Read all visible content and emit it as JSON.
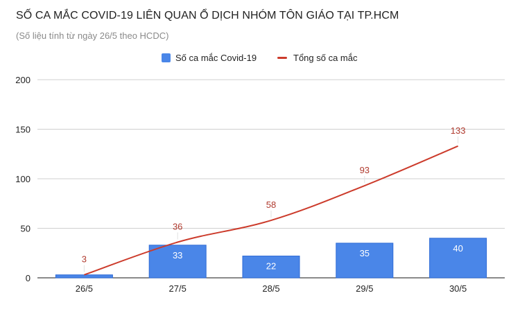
{
  "title": "SỐ CA MẮC COVID-19 LIÊN QUAN Ổ DỊCH NHÓM TÔN GIÁO TẠI TP.HCM",
  "subtitle": "(Số liệu tính từ ngày 26/5 theo HCDC)",
  "colors": {
    "bar": "#4a86e8",
    "bar_border": "#2f6bd6",
    "line": "#cc3b2b",
    "line_label": "#b03a2e",
    "grid": "#cfcfcf",
    "axis_text": "#222222"
  },
  "chart_data": {
    "type": "bar",
    "categories": [
      "26/5",
      "27/5",
      "28/5",
      "29/5",
      "30/5"
    ],
    "series": [
      {
        "name": "Số ca mắc Covid-19",
        "type": "bar",
        "values": [
          3,
          33,
          22,
          35,
          40
        ],
        "labels": [
          "",
          "33",
          "22",
          "35",
          "40"
        ]
      },
      {
        "name": "Tổng số ca mắc",
        "type": "line",
        "values": [
          3,
          36,
          58,
          93,
          133
        ],
        "labels": [
          "3",
          "36",
          "58",
          "93",
          "133"
        ]
      }
    ],
    "ylim": [
      0,
      200
    ],
    "yticks": [
      0,
      50,
      100,
      150,
      200
    ],
    "grid": true,
    "legend_position": "top-center"
  }
}
